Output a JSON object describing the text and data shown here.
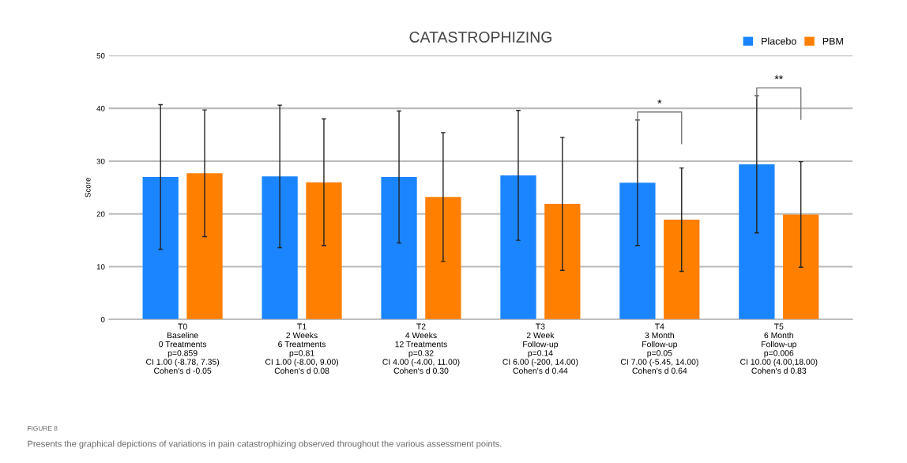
{
  "chart_data": {
    "type": "bar",
    "title": "CATASTROPHIZING",
    "ylabel": "Score",
    "categories": [
      "T0\nBaseline\n0 Treatments\np=0.859\nCI 1.00 (-8.78, 7.35)\nCohen's d -0.05",
      "T1\n2 Weeks\n6 Treatments\np=0.81\nCI 1.00 (-8.00, 9.00)\nCohen's d 0.08",
      "T2\n4 Weeks\n12 Treatments\np=0.32\nCI 4.00 (-4.00, 11.00)\nCohen's d 0.30",
      "T3\n2 Week\nFollow-up\np=0.14\nCI 6.00 (-200, 14.00)\nCohen's d 0.44",
      "T4\n3 Month\nFollow-up\np=0.05\nCI 7.00 (-5.45, 14.00)\nCohen's d 0.64",
      "T5\n6 Month\nFollow-up\np=0.006\nCI 10.00 (4.00,18.00)\nCohen's d 0.83"
    ],
    "series": [
      {
        "name": "Placebo",
        "color": "#1a85ff",
        "values": [
          27,
          27.1,
          27,
          27.3,
          25.9,
          29.4
        ],
        "errors": [
          13.7,
          13.5,
          12.5,
          12.3,
          11.9,
          13
        ]
      },
      {
        "name": "PBM",
        "color": "#ff7f00",
        "values": [
          27.7,
          26,
          23.2,
          21.9,
          18.9,
          19.9
        ],
        "errors": [
          12,
          12,
          12.2,
          12.6,
          9.8,
          10
        ]
      }
    ],
    "ylim": [
      0,
      50
    ],
    "yticks": [
      0,
      10,
      20,
      30,
      40,
      50
    ],
    "grid": "y",
    "legend": "top right",
    "annotations": [
      "*",
      "**",
      "FIGURE 8",
      "Presents the graphical depictions of variations in pain catastrophizing observed throughout the various assessment points."
    ]
  }
}
